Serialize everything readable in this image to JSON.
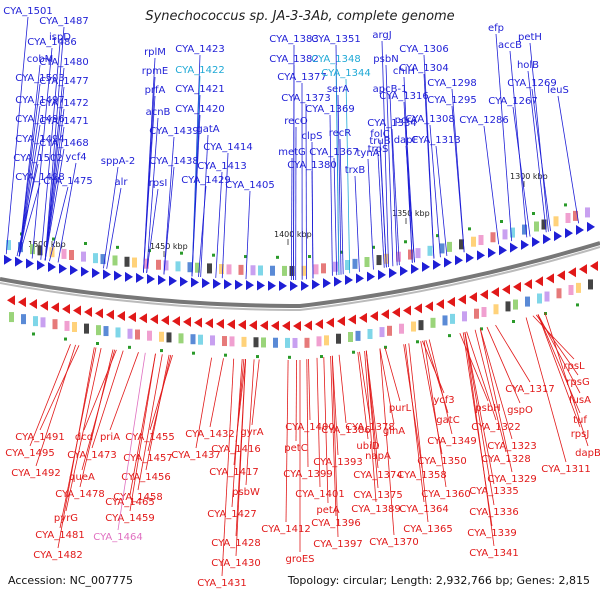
{
  "title": "Synechococcus sp. JA-3-3Ab, complete genome",
  "footer": {
    "accession": "Accession: NC_007775",
    "summary": "Topology: circular; Length: 2,932,766 bp; Genes: 2,815"
  },
  "colors": {
    "forward": "#1f1fd6",
    "reverse": "#e11919",
    "cyan": "#1fa9d6",
    "pink": "#e06fc0",
    "backbone": "#777777",
    "tick": "#2a9a2a"
  },
  "scale_labels": [
    "1500 kbp",
    "1450 kbp",
    "1400 kbp",
    "1350 kbp",
    "1300 kbp"
  ],
  "top_labels": [
    {
      "text": "CYA_1501"
    },
    {
      "text": "CYA_1487"
    },
    {
      "text": "ispD"
    },
    {
      "text": "CYA_1486"
    },
    {
      "text": "cobM"
    },
    {
      "text": "CYA_1480"
    },
    {
      "text": "CYA_1503"
    },
    {
      "text": "CYA_1477"
    },
    {
      "text": "CYA_1497"
    },
    {
      "text": "CYA_1472"
    },
    {
      "text": "CYA_1496"
    },
    {
      "text": "CYA_1471"
    },
    {
      "text": "CYA_1494"
    },
    {
      "text": "CYA_1468"
    },
    {
      "text": "CYA_1502"
    },
    {
      "text": "ycf4"
    },
    {
      "text": "sppA-2"
    },
    {
      "text": "CYA_1498"
    },
    {
      "text": "CYA_1475"
    },
    {
      "text": "alr"
    },
    {
      "text": "rplM"
    },
    {
      "text": "CYA_1423"
    },
    {
      "text": "rpmE"
    },
    {
      "text": "CYA_1422",
      "color": "cyan"
    },
    {
      "text": "prfA"
    },
    {
      "text": "CYA_1421"
    },
    {
      "text": "acnB"
    },
    {
      "text": "CYA_1420"
    },
    {
      "text": "CYA_1439"
    },
    {
      "text": "gatA"
    },
    {
      "text": "CYA_1414"
    },
    {
      "text": "CYA_1438"
    },
    {
      "text": "CYA_1413"
    },
    {
      "text": "rpsI"
    },
    {
      "text": "CYA_1429"
    },
    {
      "text": "CYA_1405"
    },
    {
      "text": "CYA_1383"
    },
    {
      "text": "CYA_1351"
    },
    {
      "text": "argJ"
    },
    {
      "text": "CYA_1382"
    },
    {
      "text": "CYA_1348",
      "color": "cyan"
    },
    {
      "text": "psbN"
    },
    {
      "text": "CYA_1377"
    },
    {
      "text": "CYA_1344",
      "color": "cyan"
    },
    {
      "text": "serA"
    },
    {
      "text": "apcB-1"
    },
    {
      "text": "CYA_1373"
    },
    {
      "text": "CYA_1369"
    },
    {
      "text": "recO"
    },
    {
      "text": "clpS"
    },
    {
      "text": "recR"
    },
    {
      "text": "metG"
    },
    {
      "text": "CYA_1367"
    },
    {
      "text": "CYA_1380"
    },
    {
      "text": "trxB"
    },
    {
      "text": "folC"
    },
    {
      "text": "CYA_1334"
    },
    {
      "text": "trpS"
    },
    {
      "text": "truB"
    },
    {
      "text": "tynA"
    },
    {
      "text": "CYA_1306"
    },
    {
      "text": "CYA_1304"
    },
    {
      "text": "chlH"
    },
    {
      "text": "CYA_1316"
    },
    {
      "text": "pcrA"
    },
    {
      "text": "dapF"
    },
    {
      "text": "CYA_1298"
    },
    {
      "text": "CYA_1295"
    },
    {
      "text": "CYA_1308"
    },
    {
      "text": "CYA_1313"
    },
    {
      "text": "efp"
    },
    {
      "text": "accB"
    },
    {
      "text": "petH"
    },
    {
      "text": "holB"
    },
    {
      "text": "CYA_1269"
    },
    {
      "text": "CYA_1267"
    },
    {
      "text": "leuS"
    },
    {
      "text": "CYA_1286"
    }
  ],
  "bottom_labels": [
    {
      "text": "CYA_1491"
    },
    {
      "text": "dcd"
    },
    {
      "text": "priA"
    },
    {
      "text": "CYA_1455"
    },
    {
      "text": "CYA_1495"
    },
    {
      "text": "CYA_1473"
    },
    {
      "text": "CYA_1457"
    },
    {
      "text": "CYA_1492"
    },
    {
      "text": "queA"
    },
    {
      "text": "CYA_1456"
    },
    {
      "text": "CYA_1478"
    },
    {
      "text": "CYA_1458"
    },
    {
      "text": "pyrG"
    },
    {
      "text": "CYA_1459"
    },
    {
      "text": "CYA_1481"
    },
    {
      "text": "CYA_1464",
      "color": "pink"
    },
    {
      "text": "CYA_1465"
    },
    {
      "text": "CYA_1482"
    },
    {
      "text": "CYA_1432"
    },
    {
      "text": "gyrA"
    },
    {
      "text": "CYA_1437"
    },
    {
      "text": "CYA_1416"
    },
    {
      "text": "CYA_1417"
    },
    {
      "text": "psbW"
    },
    {
      "text": "CYA_1427"
    },
    {
      "text": "CYA_1428"
    },
    {
      "text": "CYA_1430"
    },
    {
      "text": "CYA_1431"
    },
    {
      "text": "CYA_1412"
    },
    {
      "text": "CYA_1400"
    },
    {
      "text": "petC"
    },
    {
      "text": "CYA_1399"
    },
    {
      "text": "CYA_1401"
    },
    {
      "text": "petA"
    },
    {
      "text": "groES"
    },
    {
      "text": "CYA_1393"
    },
    {
      "text": "CYA_1396"
    },
    {
      "text": "CYA_1397"
    },
    {
      "text": "CYA_1389"
    },
    {
      "text": "CYA_1386"
    },
    {
      "text": "CYA_1378"
    },
    {
      "text": "ubiD"
    },
    {
      "text": "CYA_1374"
    },
    {
      "text": "napA"
    },
    {
      "text": "CYA_1375"
    },
    {
      "text": "CYA_1370"
    },
    {
      "text": "purL"
    },
    {
      "text": "glnA"
    },
    {
      "text": "CYA_1358"
    },
    {
      "text": "CYA_1364"
    },
    {
      "text": "CYA_1365"
    },
    {
      "text": "ycf3"
    },
    {
      "text": "gatC"
    },
    {
      "text": "CYA_1349"
    },
    {
      "text": "CYA_1350"
    },
    {
      "text": "CYA_1360"
    },
    {
      "text": "psbH"
    },
    {
      "text": "CYA_1322"
    },
    {
      "text": "CYA_1323"
    },
    {
      "text": "CYA_1328"
    },
    {
      "text": "CYA_1329"
    },
    {
      "text": "CYA_1335"
    },
    {
      "text": "CYA_1336"
    },
    {
      "text": "CYA_1339"
    },
    {
      "text": "CYA_1341"
    },
    {
      "text": "CYA_1317"
    },
    {
      "text": "gspO"
    },
    {
      "text": "rpsL"
    },
    {
      "text": "rpsG"
    },
    {
      "text": "fusA"
    },
    {
      "text": "tuf"
    },
    {
      "text": "rpsJ"
    },
    {
      "text": "dapB"
    },
    {
      "text": "CYA_1311"
    }
  ]
}
